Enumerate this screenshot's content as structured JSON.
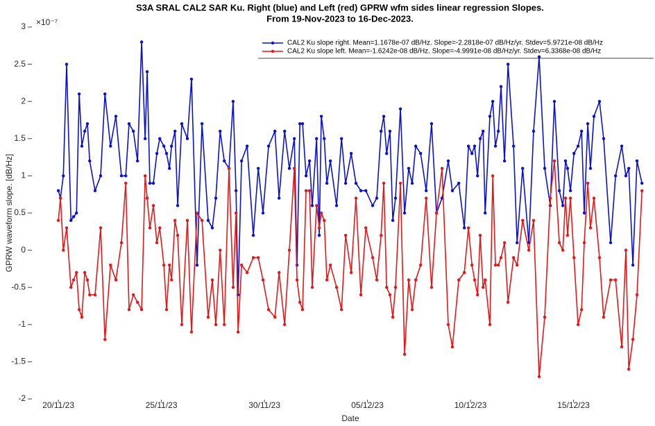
{
  "chart_data": {
    "type": "line",
    "title": "S3A SRAL CAL2 SAR Ku. Right (blue) and Left (red) GPRW wfm sides linear regression Slopes.",
    "subtitle": "From 19-Nov-2023 to 16-Dec-2023.",
    "x_label": "Date",
    "y_label": "GPRW waveform slope. [dB/Hz]",
    "y_multiplier": "×10⁻⁷",
    "xlim": [
      18.75,
      48.65
    ],
    "xticks": [
      {
        "value": 20,
        "label": "20/11/23"
      },
      {
        "value": 25,
        "label": "25/11/23"
      },
      {
        "value": 30,
        "label": "30/11/23"
      },
      {
        "value": 35,
        "label": "05/12/23"
      },
      {
        "value": 40,
        "label": "10/12/23"
      },
      {
        "value": 45,
        "label": "15/12/23"
      }
    ],
    "ylim": [
      -2,
      3
    ],
    "yticks": [
      -2,
      -1.5,
      -1,
      -0.5,
      0,
      0.5,
      1,
      1.5,
      2,
      2.5,
      3
    ],
    "grid": false,
    "legend": "top right",
    "x": [
      20.0,
      20.1,
      20.24,
      20.4,
      20.61,
      20.74,
      20.88,
      21.01,
      21.14,
      21.28,
      21.41,
      21.52,
      21.78,
      22.05,
      22.26,
      22.53,
      22.79,
      23.06,
      23.27,
      23.43,
      23.64,
      23.84,
      24.04,
      24.21,
      24.31,
      24.44,
      24.61,
      24.78,
      24.92,
      25.12,
      25.25,
      25.39,
      25.49,
      25.66,
      25.79,
      25.99,
      26.26,
      26.46,
      26.73,
      26.97,
      27.27,
      27.47,
      27.64,
      27.85,
      28.05,
      28.28,
      28.48,
      28.62,
      28.72,
      28.89,
      29.16,
      29.46,
      29.7,
      29.93,
      30.2,
      30.51,
      30.71,
      30.98,
      31.21,
      31.45,
      31.58,
      31.72,
      31.85,
      32.02,
      32.19,
      32.32,
      32.53,
      32.66,
      32.76,
      32.9,
      33.03,
      33.2,
      33.5,
      33.74,
      33.94,
      34.21,
      34.44,
      34.68,
      34.92,
      35.25,
      35.45,
      35.66,
      35.79,
      35.93,
      36.09,
      36.23,
      36.36,
      36.6,
      36.8,
      37.0,
      37.17,
      37.34,
      37.58,
      37.85,
      38.11,
      38.35,
      38.62,
      38.92,
      39.12,
      39.43,
      39.7,
      39.9,
      40.07,
      40.2,
      40.34,
      40.47,
      40.61,
      40.71,
      40.94,
      41.08,
      41.21,
      41.35,
      41.48,
      41.65,
      41.82,
      42.09,
      42.26,
      42.53,
      42.83,
      43.06,
      43.33,
      43.6,
      43.87,
      44.07,
      44.31,
      44.48,
      44.61,
      44.71,
      44.85,
      45.02,
      45.22,
      45.39,
      45.52,
      45.69,
      45.82,
      45.99,
      46.26,
      46.46,
      46.8,
      47.04,
      47.34,
      47.54,
      47.68,
      47.88,
      48.08,
      48.32
    ],
    "series": [
      {
        "name": "CAL2 Ku slope right. Mean=1.1678e-07 dB/Hz. Slope=-2.2818e-07 dB/Hz/yr. Stdev=5.9721e-08 dB/Hz",
        "color": "#0b12c9",
        "values": [
          0.8,
          0.7,
          1.0,
          2.5,
          0.4,
          0.45,
          0.5,
          2.1,
          1.4,
          1.6,
          1.7,
          1.2,
          0.8,
          1.0,
          2.1,
          1.4,
          1.8,
          1.0,
          1.0,
          1.7,
          1.6,
          1.2,
          2.8,
          1.5,
          2.4,
          0.9,
          0.9,
          1.3,
          1.5,
          1.4,
          1.3,
          1.1,
          1.4,
          1.6,
          0.6,
          1.7,
          1.5,
          2.3,
          -0.2,
          1.7,
          0.4,
          0.3,
          0.7,
          1.6,
          1.2,
          1.1,
          2.0,
          0.8,
          -0.6,
          1.2,
          1.4,
          0.2,
          1.1,
          0.5,
          1.4,
          1.6,
          0.7,
          1.6,
          1.1,
          1.5,
          -0.2,
          1.7,
          1.7,
          1.0,
          1.2,
          0.6,
          1.5,
          0.2,
          1.8,
          1.5,
          0.9,
          1.2,
          0.6,
          1.5,
          0.9,
          1.3,
          0.9,
          0.8,
          0.8,
          0.6,
          0.7,
          1.6,
          1.8,
          1.3,
          1.6,
          0.4,
          0.7,
          1.9,
          0.5,
          1.1,
          0.9,
          1.4,
          1.3,
          0.8,
          1.7,
          0.5,
          0.7,
          1.2,
          0.8,
          0.9,
          0.3,
          1.4,
          1.3,
          1.4,
          1.0,
          1.5,
          1.6,
          0.5,
          1.8,
          2.0,
          1.4,
          1.6,
          2.2,
          1.2,
          2.5,
          1.4,
          0.1,
          1.1,
          0.1,
          1.6,
          2.6,
          1.1,
          0.6,
          2.0,
          0.8,
          0.6,
          1.2,
          1.1,
          0.8,
          1.3,
          1.4,
          1.6,
          0.5,
          1.7,
          1.1,
          1.8,
          2.0,
          1.5,
          0.1,
          1.0,
          1.4,
          1.0,
          1.1,
          -0.2,
          1.2,
          0.9
        ]
      },
      {
        "name": "CAL2 Ku slope left. Mean=-1.6242e-08 dB/Hz. Slope=-4.9991e-08 dB/Hz/yr. Stdev=6.3368e-08 dB/Hz",
        "color": "#e0191b",
        "values": [
          0.4,
          0.7,
          0.0,
          0.3,
          -0.5,
          -0.4,
          -0.3,
          -0.8,
          -0.9,
          -0.3,
          -0.4,
          -0.6,
          -0.6,
          0.3,
          -1.2,
          -0.2,
          -0.4,
          0.1,
          0.9,
          -0.8,
          -0.6,
          -0.7,
          -0.8,
          1.0,
          0.7,
          0.3,
          0.6,
          0.1,
          0.3,
          -0.2,
          -0.8,
          -0.2,
          -0.4,
          0.4,
          0.2,
          -1.0,
          0.4,
          -1.1,
          0.5,
          0.4,
          -0.9,
          -0.4,
          -1.0,
          0.0,
          -1.0,
          1.1,
          -0.5,
          0.5,
          -1.1,
          -0.2,
          -0.3,
          -0.1,
          -0.1,
          -0.4,
          -0.8,
          -0.9,
          -0.3,
          -1.0,
          0.0,
          1.1,
          -0.4,
          -0.7,
          -0.8,
          0.8,
          0.8,
          -0.5,
          0.6,
          0.3,
          0.5,
          0.4,
          -0.4,
          -0.2,
          -0.5,
          -0.8,
          0.2,
          -0.3,
          0.7,
          -0.6,
          0.3,
          -0.1,
          -0.4,
          0.2,
          0.9,
          -0.5,
          -0.6,
          -0.9,
          -0.5,
          0.9,
          -1.4,
          -0.4,
          -0.8,
          -0.4,
          -0.2,
          0.7,
          -0.5,
          0.5,
          1.1,
          -1.0,
          -1.3,
          -0.4,
          -0.3,
          0.3,
          -0.2,
          -0.4,
          -0.6,
          0.2,
          -0.5,
          -0.4,
          -1.0,
          1.0,
          -0.2,
          -0.2,
          -0.1,
          0.1,
          -0.7,
          -0.1,
          -0.2,
          0.4,
          0.0,
          0.4,
          -1.7,
          -0.9,
          0.7,
          1.2,
          0.1,
          0.0,
          0.7,
          0.2,
          0.7,
          -0.1,
          -1.0,
          -0.8,
          0.1,
          0.9,
          0.3,
          0.7,
          -0.1,
          -0.9,
          -0.4,
          -0.4,
          -1.3,
          0.0,
          -1.6,
          -1.2,
          -0.6,
          0.8
        ]
      }
    ]
  }
}
